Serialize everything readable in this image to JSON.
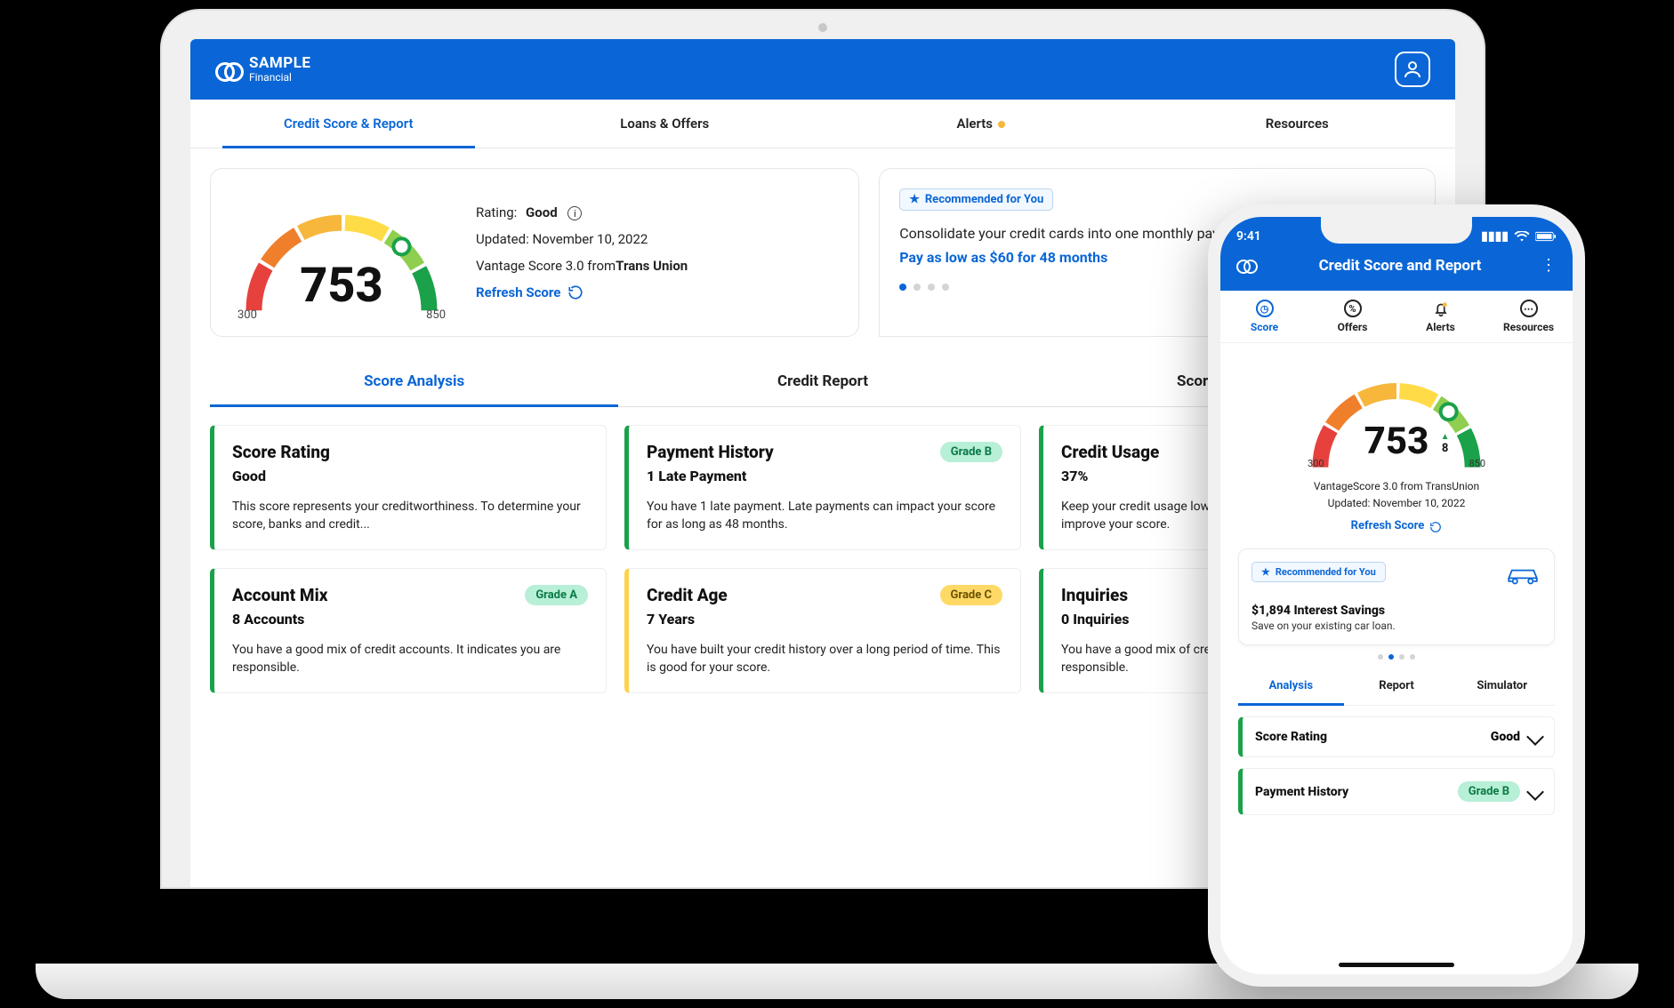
{
  "brand": {
    "name": "SAMPLE",
    "sub": "Financial"
  },
  "colors": {
    "primary": "#0a66d6",
    "gauge_segments": [
      "#e6413c",
      "#f07f2c",
      "#f6b73c",
      "#ffdb47",
      "#8fce4e",
      "#1aa14a"
    ],
    "grade_a_bg": "#b7efd7",
    "grade_a_fg": "#0b7a45",
    "grade_b_bg": "#b7efd7",
    "grade_b_fg": "#0b7a45",
    "grade_c_bg": "#ffd966",
    "grade_c_fg": "#6b5200",
    "border_green": "#1aa14a",
    "border_yellow": "#ffd24d"
  },
  "desktop": {
    "tabs": [
      "Credit Score & Report",
      "Loans & Offers",
      "Alerts",
      "Resources"
    ],
    "active_tab": 0,
    "alerts_has_dot": true,
    "score": {
      "value": "753",
      "min": "300",
      "max": "850",
      "rating_label": "Rating:",
      "rating_value": "Good",
      "updated": "Updated: November 10, 2022",
      "source_prefix": "Vantage Score 3.0 from",
      "source_bureau": "Trans Union",
      "refresh": "Refresh Score",
      "needle_pct": 0.74
    },
    "rec": {
      "badge": "Recommended for You",
      "line1": "Consolidate your credit cards into one monthly payment.",
      "cta": "Pay as low as $60 for 48 months",
      "active_dot": 0,
      "dot_count": 4
    },
    "subtabs": [
      "Score Analysis",
      "Credit Report",
      "Score Simulator"
    ],
    "active_subtab": 0,
    "factors": [
      {
        "title": "Score Rating",
        "value": "Good",
        "grade": null,
        "border": "#1aa14a",
        "desc": "This score represents your creditworthiness. To determine your score, banks and credit..."
      },
      {
        "title": "Payment History",
        "value": "1 Late Payment",
        "grade": "Grade B",
        "grade_style": "b",
        "border": "#1aa14a",
        "desc": "You have 1 late payment. Late payments can impact your score for as long as 48 months."
      },
      {
        "title": "Credit Usage",
        "value": "37%",
        "grade": null,
        "border": "#1aa14a",
        "desc": "Keep your credit usage low on your credit cards in order to improve your score."
      },
      {
        "title": "Account Mix",
        "value": "8 Accounts",
        "grade": "Grade A",
        "grade_style": "a",
        "border": "#1aa14a",
        "desc": "You have a good mix of credit accounts. It indicates you are responsible."
      },
      {
        "title": "Credit Age",
        "value": "7 Years",
        "grade": "Grade C",
        "grade_style": "c",
        "border": "#ffd24d",
        "desc": "You have built your credit history over a long period of time. This is good for your score."
      },
      {
        "title": "Inquiries",
        "value": "0 Inquiries",
        "grade": null,
        "border": "#1aa14a",
        "desc": "You have a good mix of credit accounts. It indicates you are responsible."
      }
    ]
  },
  "mobile": {
    "time": "9:41",
    "title": "Credit Score and Report",
    "tabs": [
      "Score",
      "Offers",
      "Alerts",
      "Resources"
    ],
    "active_tab": 0,
    "score": {
      "value": "753",
      "delta": "8",
      "min": "300",
      "max": "850",
      "source": "VantageScore 3.0 from TransUnion",
      "updated": "Updated: November 10, 2022",
      "refresh": "Refresh Score",
      "needle_pct": 0.74
    },
    "rec": {
      "badge": "Recommended for You",
      "headline": "$1,894 Interest Savings",
      "sub": "Save on your existing car loan.",
      "active_dot": 1,
      "dot_count": 4
    },
    "subtabs": [
      "Analysis",
      "Report",
      "Simulator"
    ],
    "active_subtab": 0,
    "rows": [
      {
        "title": "Score Rating",
        "right": "Good",
        "grade_style": null,
        "border": "#1aa14a"
      },
      {
        "title": "Payment History",
        "right": "Grade B",
        "grade_style": "b",
        "border": "#1aa14a"
      }
    ]
  }
}
